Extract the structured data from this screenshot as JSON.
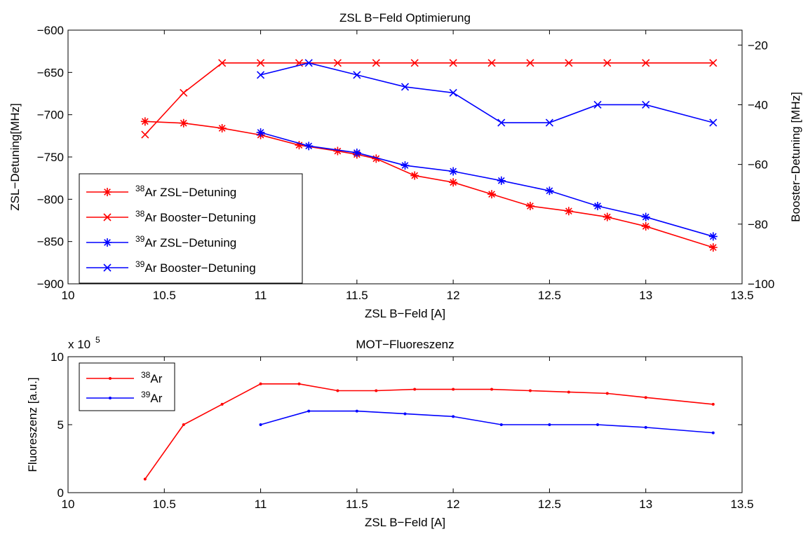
{
  "chart_data": [
    {
      "type": "line",
      "title": "ZSL B−Feld Optimierung",
      "xlabel": "ZSL B−Feld [A]",
      "ylabel": "ZSL−Detuning[MHz]",
      "y2label": "Booster−Detuning [MHz]",
      "xlim": [
        10,
        13.5
      ],
      "ylim": [
        -900,
        -600
      ],
      "y2lim": [
        -100,
        -15
      ],
      "xticks": [
        "10",
        "10.5",
        "11",
        "11.5",
        "12",
        "12.5",
        "13",
        "13.5"
      ],
      "yticks": [
        "−600",
        "−650",
        "−700",
        "−750",
        "−800",
        "−850",
        "−900"
      ],
      "y2ticks": [
        "−20",
        "−40",
        "−60",
        "−80",
        "−100"
      ],
      "legend_position": "bottom-left",
      "series": [
        {
          "name": "Ar ZSL−Detuning",
          "sup": "38",
          "color": "#ff0000",
          "marker": "asterisk",
          "axis": "left",
          "x": [
            10.4,
            10.6,
            10.8,
            11.0,
            11.2,
            11.4,
            11.5,
            11.6,
            11.8,
            12.0,
            12.2,
            12.4,
            12.6,
            12.8,
            13.0,
            13.35
          ],
          "y": [
            -708,
            -710,
            -716,
            -724,
            -736,
            -743,
            -747,
            -752,
            -772,
            -780,
            -794,
            -808,
            -814,
            -821,
            -832,
            -857
          ]
        },
        {
          "name": "Ar Booster−Detuning",
          "sup": "38",
          "color": "#ff0000",
          "marker": "x",
          "axis": "right",
          "x": [
            10.4,
            10.6,
            10.8,
            11.0,
            11.2,
            11.4,
            11.6,
            11.8,
            12.0,
            12.2,
            12.4,
            12.6,
            12.8,
            13.0,
            13.35
          ],
          "y": [
            -50,
            -36,
            -26,
            -26,
            -26,
            -26,
            -26,
            -26,
            -26,
            -26,
            -26,
            -26,
            -26,
            -26,
            -26
          ]
        },
        {
          "name": "Ar ZSL−Detuning",
          "sup": "39",
          "color": "#0000ff",
          "marker": "asterisk",
          "axis": "left",
          "x": [
            11.0,
            11.25,
            11.5,
            11.75,
            12.0,
            12.25,
            12.5,
            12.75,
            13.0,
            13.35
          ],
          "y": [
            -721,
            -737,
            -745,
            -760,
            -767,
            -778,
            -790,
            -808,
            -821,
            -844
          ]
        },
        {
          "name": "Ar Booster−Detuning",
          "sup": "39",
          "color": "#0000ff",
          "marker": "x",
          "axis": "right",
          "x": [
            11.0,
            11.25,
            11.5,
            11.75,
            12.0,
            12.25,
            12.5,
            12.75,
            13.0,
            13.35
          ],
          "y": [
            -30,
            -26,
            -30,
            -34,
            -36,
            -46,
            -46,
            -40,
            -40,
            -46
          ]
        }
      ]
    },
    {
      "type": "line",
      "title": "MOT−Fluoreszenz",
      "xlabel": "ZSL B−Feld [A]",
      "ylabel": "Fluoreszenz [a.u.]",
      "xlim": [
        10,
        13.5
      ],
      "ylim": [
        0,
        10
      ],
      "y_exponent": "x 10",
      "y_exponent_power": "5",
      "xticks": [
        "10",
        "10.5",
        "11",
        "11.5",
        "12",
        "12.5",
        "13",
        "13.5"
      ],
      "yticks": [
        "0",
        "5",
        "10"
      ],
      "legend_position": "top-left",
      "series": [
        {
          "name": "Ar",
          "sup": "38",
          "color": "#ff0000",
          "marker": "dot",
          "x": [
            10.4,
            10.6,
            10.8,
            11.0,
            11.2,
            11.4,
            11.6,
            11.8,
            12.0,
            12.2,
            12.4,
            12.6,
            12.8,
            13.0,
            13.35
          ],
          "y": [
            1.0,
            5.0,
            6.5,
            8.0,
            8.0,
            7.5,
            7.5,
            7.6,
            7.6,
            7.6,
            7.5,
            7.4,
            7.3,
            7.0,
            6.5
          ]
        },
        {
          "name": "Ar",
          "sup": "39",
          "color": "#0000ff",
          "marker": "dot",
          "x": [
            11.0,
            11.25,
            11.5,
            11.75,
            12.0,
            12.25,
            12.5,
            12.75,
            13.0,
            13.35
          ],
          "y": [
            5.0,
            6.0,
            6.0,
            5.8,
            5.6,
            5.0,
            5.0,
            5.0,
            4.8,
            4.4
          ]
        }
      ]
    }
  ]
}
